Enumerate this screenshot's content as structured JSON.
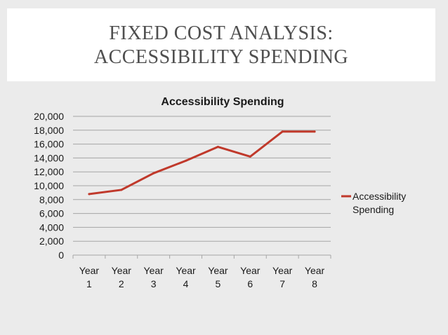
{
  "slide": {
    "title_line_1": "FIXED COST ANALYSIS:",
    "title_line_2": "ACCESSIBILITY SPENDING"
  },
  "colors": {
    "series_line": "#c0392b",
    "gridline": "#a6a6a6",
    "text": "#1a1a1a",
    "title_text": "#4f4f4f"
  },
  "chart_data": {
    "type": "line",
    "title": "Accessibility Spending",
    "xlabel": "",
    "ylabel": "",
    "categories": [
      [
        "Year",
        "1"
      ],
      [
        "Year",
        "2"
      ],
      [
        "Year",
        "3"
      ],
      [
        "Year",
        "4"
      ],
      [
        "Year",
        "5"
      ],
      [
        "Year",
        "6"
      ],
      [
        "Year",
        "7"
      ],
      [
        "Year",
        "8"
      ]
    ],
    "series": [
      {
        "name": "Accessibility Spending",
        "legend_lines": [
          "Accessibility",
          "Spending"
        ],
        "values": [
          8800,
          9400,
          11800,
          13600,
          15600,
          14200,
          17800,
          17800
        ]
      }
    ],
    "ylim": [
      0,
      20000
    ],
    "yticks": [
      0,
      2000,
      4000,
      6000,
      8000,
      10000,
      12000,
      14000,
      16000,
      18000,
      20000
    ],
    "ytick_labels": [
      "0",
      "2,000",
      "4,000",
      "6,000",
      "8,000",
      "10,000",
      "12,000",
      "14,000",
      "16,000",
      "18,000",
      "20,000"
    ],
    "grid": true,
    "legend": "right"
  }
}
